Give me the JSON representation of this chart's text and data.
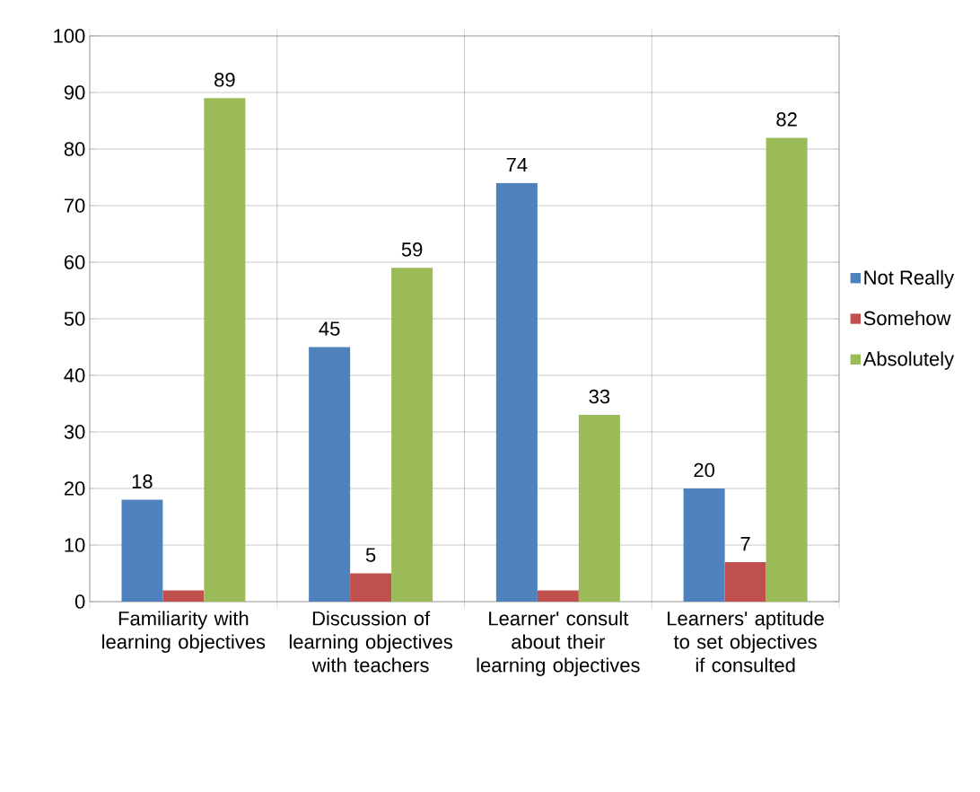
{
  "chart_data": {
    "type": "bar",
    "categories": [
      "Familiarity with learning objectives",
      "Discussion of learning objectives with teachers",
      "Learner' consult about their learning objectives",
      "Learners' aptitude to set objectives if consulted"
    ],
    "series": [
      {
        "name": "Not Really",
        "color": "#4f81bd",
        "values": [
          18,
          45,
          74,
          20
        ],
        "value_labels": [
          "18",
          "45",
          "74",
          "20"
        ]
      },
      {
        "name": "Somehow",
        "color": "#c0504d",
        "values": [
          2,
          5,
          2,
          7
        ],
        "value_labels": [
          null,
          "5",
          null,
          "7"
        ]
      },
      {
        "name": "Absolutely",
        "color": "#9bbb59",
        "values": [
          89,
          59,
          33,
          82
        ],
        "value_labels": [
          "89",
          "59",
          "33",
          "82"
        ]
      }
    ],
    "ylim": [
      0,
      100
    ],
    "yticks": [
      0,
      10,
      20,
      30,
      40,
      50,
      60,
      70,
      80,
      90,
      100
    ],
    "grid": true,
    "legend": "right"
  }
}
